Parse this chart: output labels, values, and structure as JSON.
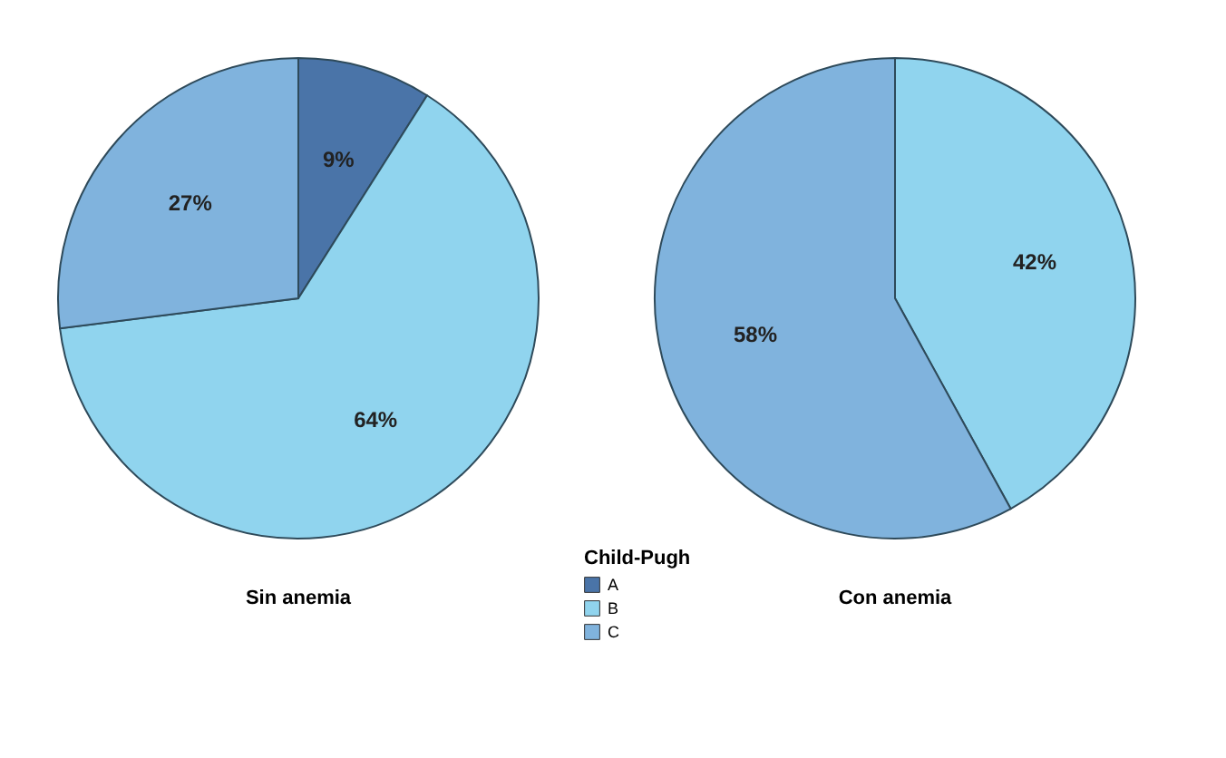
{
  "chart_data": [
    {
      "type": "pie",
      "title": "Sin anemia",
      "legend_title": "Child-Pugh",
      "legend": "bottom right",
      "categories": [
        "A",
        "B",
        "C"
      ],
      "values": [
        9,
        64,
        27
      ],
      "value_labels": [
        "9%",
        "64%",
        "27%"
      ],
      "colors": [
        "#4a74a8",
        "#90d4ee",
        "#80b3dd"
      ]
    },
    {
      "type": "pie",
      "title": "Con anemia",
      "categories": [
        null,
        null
      ],
      "values": [
        42,
        58
      ],
      "value_labels": [
        "42%",
        "58%"
      ],
      "colors": [
        "#90d4ee",
        "#80b3dd"
      ]
    }
  ]
}
